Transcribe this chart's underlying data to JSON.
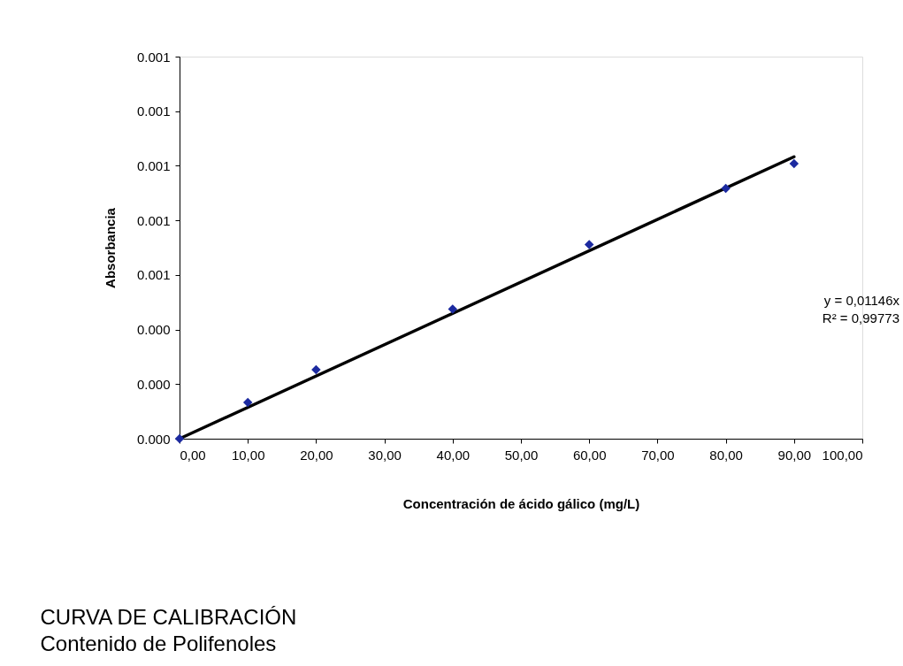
{
  "chart_data": {
    "type": "scatter",
    "title": "CURVA DE CALIBRACIÓN",
    "subtitle": "Contenido de Polifenoles",
    "xlabel": "Concentración de ácido gálico (mg/L)",
    "ylabel": "Absorbancia",
    "annotations": [
      "y = 0,01146x",
      "R² = 0,99773"
    ],
    "grid": false,
    "series": [
      {
        "color": "#1c2aa0",
        "marker": "diamond",
        "x": [
          0,
          10,
          20,
          40,
          60,
          80,
          90
        ],
        "values": [
          0,
          0.000133,
          0.000253,
          0.000475,
          0.000711,
          0.000917,
          0.001008
        ]
      },
      {
        "type": "line",
        "marker": "none",
        "line_style": "solid",
        "color": "#000000",
        "x": [
          0,
          90
        ],
        "values": [
          0,
          0.001033
        ]
      }
    ],
    "xlim": [
      0,
      100
    ],
    "xticks": [
      {
        "value": 0,
        "label": "0,00"
      },
      {
        "value": 10,
        "label": "10,00"
      },
      {
        "value": 20,
        "label": "20,00"
      },
      {
        "value": 30,
        "label": "30,00"
      },
      {
        "value": 40,
        "label": "40,00"
      },
      {
        "value": 50,
        "label": "50,00"
      },
      {
        "value": 60,
        "label": "60,00"
      },
      {
        "value": 70,
        "label": "70,00"
      },
      {
        "value": 80,
        "label": "80,00"
      },
      {
        "value": 90,
        "label": "90,00"
      },
      {
        "value": 100,
        "label": "100,00"
      }
    ],
    "ylim": [
      0,
      0.0014
    ],
    "yticks": [
      {
        "value": 0,
        "label": "0.000"
      },
      {
        "value": 0.0002,
        "label": "0.000"
      },
      {
        "value": 0.0004,
        "label": "0.000"
      },
      {
        "value": 0.0006,
        "label": "0.001"
      },
      {
        "value": 0.0008,
        "label": "0.001"
      },
      {
        "value": 0.001,
        "label": "0.001"
      },
      {
        "value": 0.0012,
        "label": "0.001"
      },
      {
        "value": 0.0014,
        "label": "0.001"
      }
    ]
  }
}
